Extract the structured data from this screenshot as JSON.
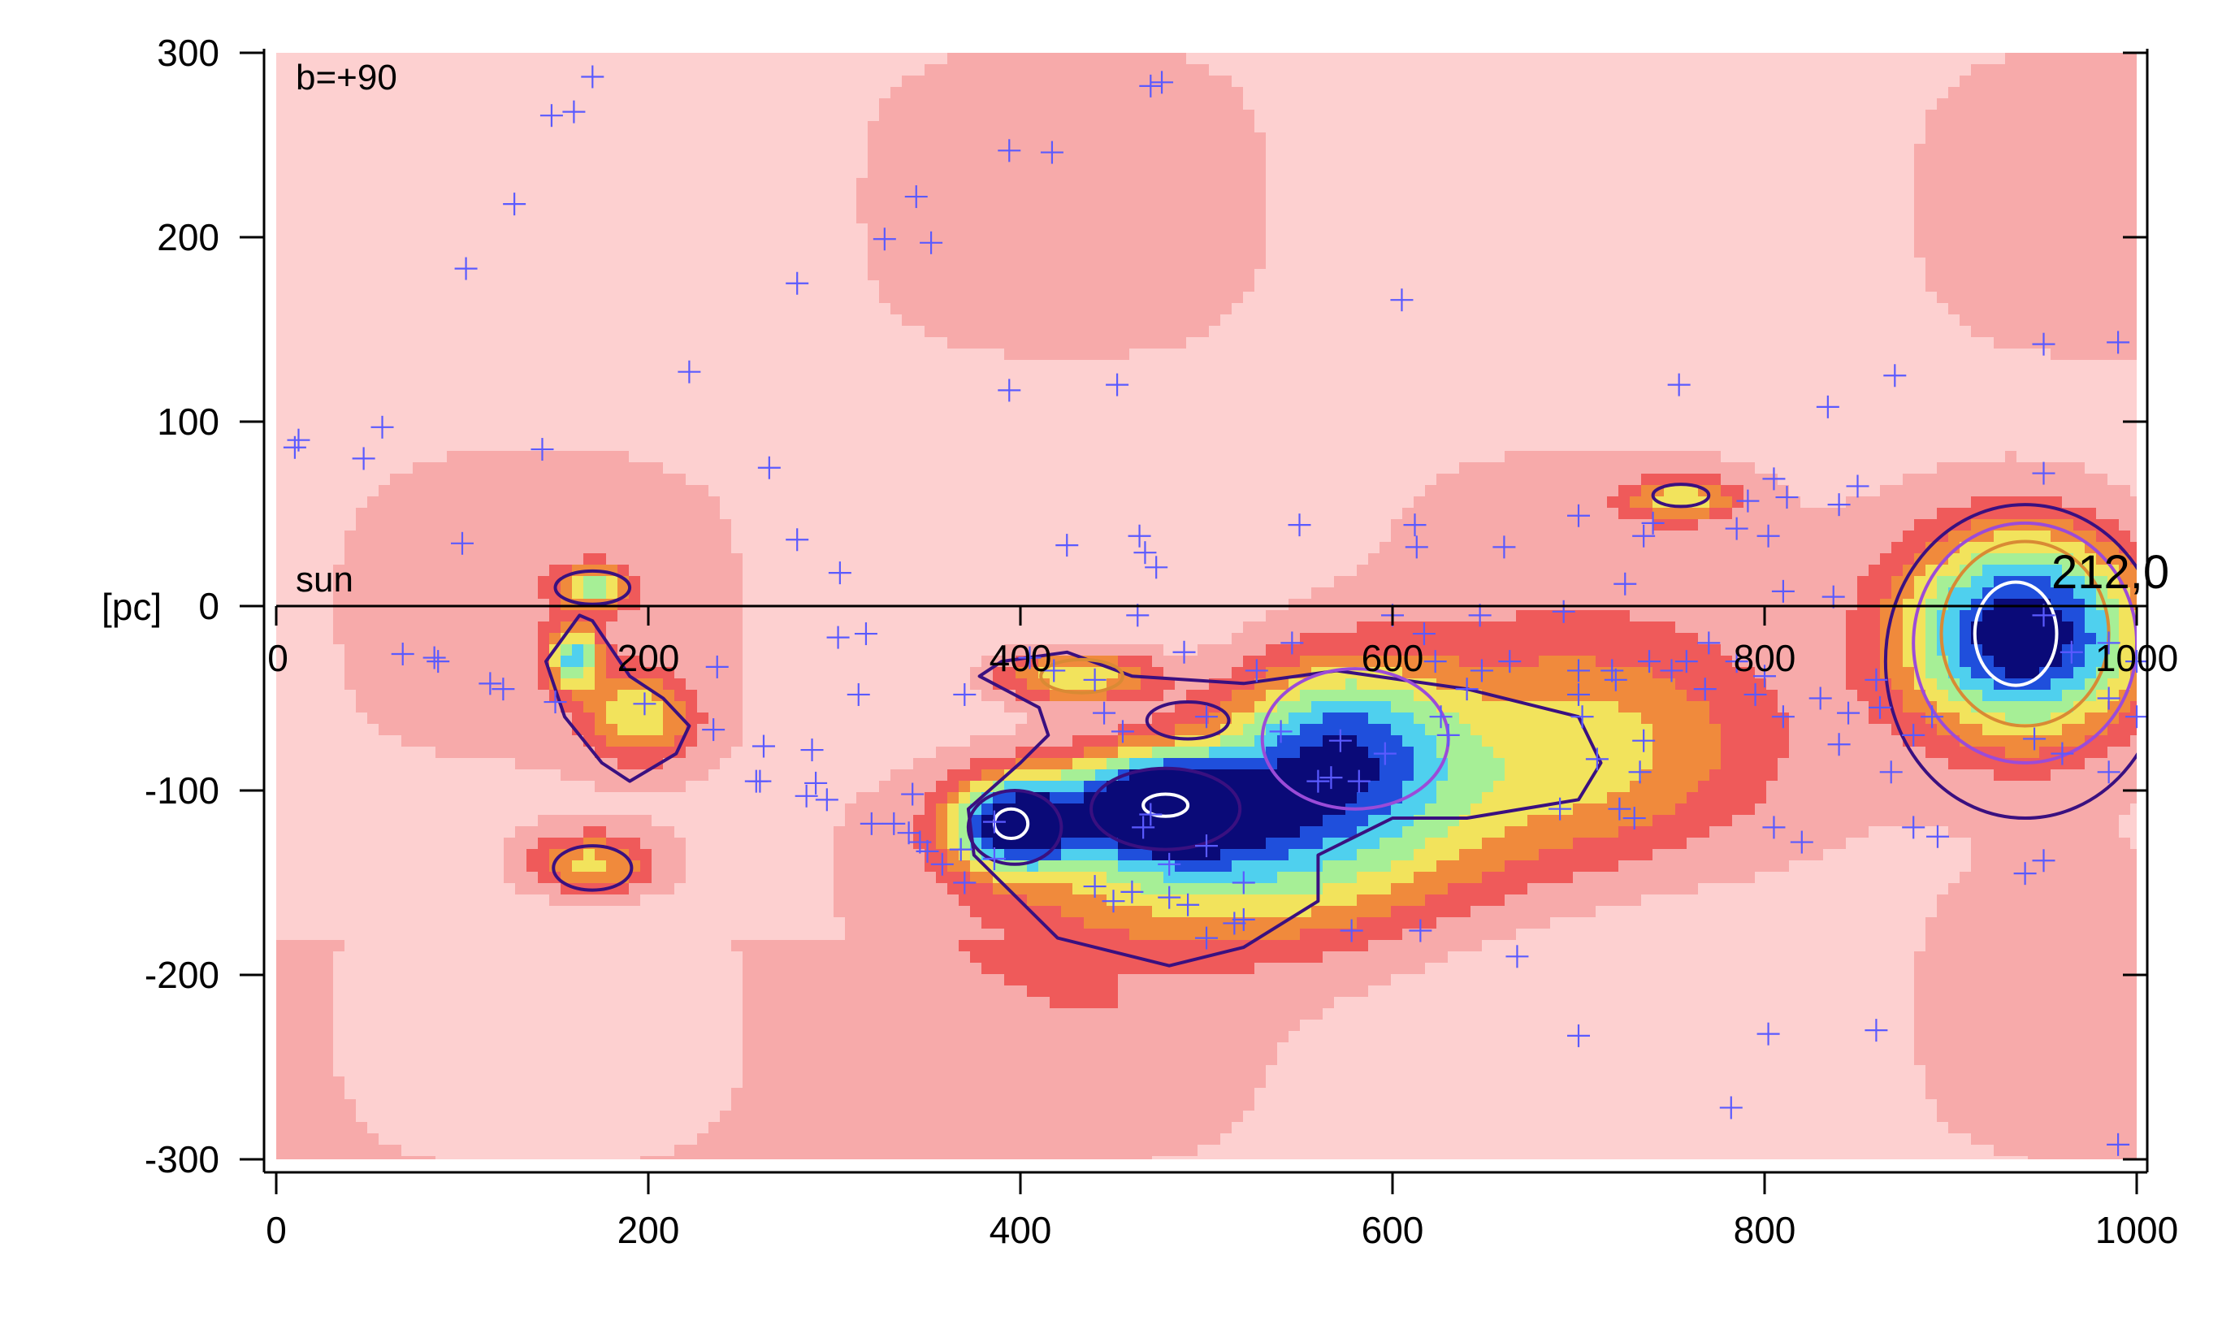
{
  "chart_data": {
    "type": "heatmap",
    "title": "",
    "xlabel": "",
    "ylabel": "[pc]",
    "xlim": [
      0,
      1000
    ],
    "ylim": [
      -300,
      300
    ],
    "x_ticks": [
      "0",
      "200",
      "400",
      "600",
      "800",
      "1000"
    ],
    "y_ticks": [
      "300",
      "200",
      "100",
      "0",
      "-100",
      "-200",
      "-300"
    ],
    "inner_x_ticks": [
      "0",
      "200",
      "400",
      "600",
      "800",
      "1000"
    ],
    "ylabel_prefix": "[pc]",
    "annotations": {
      "corner": "b=+90",
      "sun": "sun",
      "edge": "212,0"
    },
    "colormap": [
      "#ffe6e6",
      "#fdd0d0",
      "#f7aaaa",
      "#ef5a5a",
      "#f08a3c",
      "#f2e35c",
      "#a6ef96",
      "#4fd0ee",
      "#1f4fdc",
      "#0a0a78"
    ],
    "colors": {
      "axis": "#000000",
      "contour_outer": "#3a1080",
      "contour_mid": "#9b4bd8",
      "contour_inner": "#d98a34",
      "contour_peak": "#ffffff",
      "markers": "#5a5aff"
    },
    "density_blobs": [
      {
        "x": 940,
        "y": -15,
        "peak": 1.0,
        "sx": 45,
        "sy": 38
      },
      {
        "x": 478,
        "y": -108,
        "peak": 0.95,
        "sx": 35,
        "sy": 18
      },
      {
        "x": 397,
        "y": -118,
        "peak": 0.9,
        "sx": 22,
        "sy": 16
      },
      {
        "x": 570,
        "y": -75,
        "peak": 0.62,
        "sx": 42,
        "sy": 32
      },
      {
        "x": 520,
        "y": -130,
        "peak": 0.55,
        "sx": 85,
        "sy": 35
      },
      {
        "x": 160,
        "y": -28,
        "peak": 0.55,
        "sx": 10,
        "sy": 12
      },
      {
        "x": 170,
        "y": 10,
        "peak": 0.45,
        "sx": 14,
        "sy": 8
      },
      {
        "x": 195,
        "y": -60,
        "peak": 0.4,
        "sx": 20,
        "sy": 16
      },
      {
        "x": 170,
        "y": -140,
        "peak": 0.38,
        "sx": 24,
        "sy": 12
      },
      {
        "x": 755,
        "y": 58,
        "peak": 0.4,
        "sx": 20,
        "sy": 8
      },
      {
        "x": 430,
        "y": -38,
        "peak": 0.45,
        "sx": 30,
        "sy": 10
      },
      {
        "x": 700,
        "y": -80,
        "peak": 0.35,
        "sx": 70,
        "sy": 40
      }
    ],
    "contours": [
      {
        "level": "outer",
        "x": 940,
        "y": -30,
        "rx": 75,
        "ry": 85
      },
      {
        "level": "mid",
        "x": 940,
        "y": -20,
        "rx": 60,
        "ry": 65
      },
      {
        "level": "inner",
        "x": 940,
        "y": -15,
        "rx": 45,
        "ry": 50
      },
      {
        "level": "peak",
        "x": 935,
        "y": -15,
        "rx": 22,
        "ry": 28
      },
      {
        "level": "outer",
        "x": 478,
        "y": -110,
        "rx": 40,
        "ry": 22
      },
      {
        "level": "peak",
        "x": 478,
        "y": -108,
        "rx": 12,
        "ry": 6
      },
      {
        "level": "outer",
        "x": 397,
        "y": -120,
        "rx": 25,
        "ry": 20
      },
      {
        "level": "peak",
        "x": 395,
        "y": -118,
        "rx": 9,
        "ry": 8
      },
      {
        "level": "mid",
        "x": 580,
        "y": -72,
        "rx": 50,
        "ry": 38
      },
      {
        "level": "outer",
        "x": 490,
        "y": -62,
        "rx": 22,
        "ry": 10
      },
      {
        "level": "outer",
        "x": 170,
        "y": 10,
        "rx": 20,
        "ry": 9
      },
      {
        "level": "outer",
        "x": 170,
        "y": -142,
        "rx": 21,
        "ry": 12
      },
      {
        "level": "outer",
        "x": 755,
        "y": 60,
        "rx": 15,
        "ry": 6
      },
      {
        "level": "inner",
        "x": 433,
        "y": -38,
        "rx": 22,
        "ry": 9
      }
    ],
    "outer_paths": [
      {
        "name": "central-complex",
        "points": [
          [
            372,
            -110
          ],
          [
            400,
            -85
          ],
          [
            415,
            -70
          ],
          [
            410,
            -55
          ],
          [
            378,
            -38
          ],
          [
            390,
            -30
          ],
          [
            425,
            -25
          ],
          [
            460,
            -38
          ],
          [
            520,
            -42
          ],
          [
            570,
            -35
          ],
          [
            640,
            -45
          ],
          [
            700,
            -60
          ],
          [
            712,
            -85
          ],
          [
            700,
            -105
          ],
          [
            640,
            -115
          ],
          [
            600,
            -115
          ],
          [
            560,
            -135
          ],
          [
            560,
            -160
          ],
          [
            520,
            -185
          ],
          [
            480,
            -195
          ],
          [
            420,
            -180
          ],
          [
            395,
            -155
          ],
          [
            375,
            -135
          ]
        ]
      },
      {
        "name": "left-filament",
        "points": [
          [
            163,
            -5
          ],
          [
            145,
            -30
          ],
          [
            155,
            -60
          ],
          [
            175,
            -85
          ],
          [
            190,
            -95
          ],
          [
            215,
            -80
          ],
          [
            222,
            -65
          ],
          [
            208,
            -50
          ],
          [
            190,
            -38
          ],
          [
            178,
            -20
          ],
          [
            170,
            -8
          ]
        ]
      }
    ],
    "markers": [
      [
        170,
        287
      ],
      [
        148,
        266
      ],
      [
        160,
        268
      ],
      [
        128,
        218
      ],
      [
        102,
        183
      ],
      [
        10,
        86
      ],
      [
        12,
        90
      ],
      [
        47,
        80
      ],
      [
        57,
        97
      ],
      [
        143,
        85
      ],
      [
        100,
        34
      ],
      [
        222,
        127
      ],
      [
        280,
        175
      ],
      [
        265,
        75
      ],
      [
        280,
        36
      ],
      [
        303,
        18
      ],
      [
        344,
        222
      ],
      [
        352,
        197
      ],
      [
        327,
        199
      ],
      [
        394,
        247
      ],
      [
        417,
        246
      ],
      [
        394,
        117
      ],
      [
        452,
        120
      ],
      [
        470,
        282
      ],
      [
        476,
        284
      ],
      [
        425,
        33
      ],
      [
        464,
        38
      ],
      [
        467,
        29
      ],
      [
        473,
        21
      ],
      [
        550,
        44
      ],
      [
        605,
        166
      ],
      [
        612,
        44
      ],
      [
        613,
        32
      ],
      [
        660,
        32
      ],
      [
        700,
        49
      ],
      [
        740,
        45
      ],
      [
        735,
        38
      ],
      [
        725,
        12
      ],
      [
        754,
        120
      ],
      [
        785,
        42
      ],
      [
        791,
        57
      ],
      [
        802,
        38
      ],
      [
        805,
        69
      ],
      [
        812,
        59
      ],
      [
        810,
        8
      ],
      [
        834,
        108
      ],
      [
        840,
        55
      ],
      [
        850,
        65
      ],
      [
        837,
        5
      ],
      [
        870,
        125
      ],
      [
        950,
        72
      ],
      [
        950,
        142
      ],
      [
        990,
        143
      ],
      [
        68,
        -26
      ],
      [
        85,
        -28
      ],
      [
        87,
        -30
      ],
      [
        115,
        -42
      ],
      [
        122,
        -45
      ],
      [
        150,
        -52
      ],
      [
        198,
        -53
      ],
      [
        237,
        -33
      ],
      [
        235,
        -67
      ],
      [
        262,
        -76
      ],
      [
        260,
        -95
      ],
      [
        258,
        -95
      ],
      [
        288,
        -78
      ],
      [
        290,
        -96
      ],
      [
        285,
        -103
      ],
      [
        296,
        -105
      ],
      [
        302,
        -17
      ],
      [
        317,
        -15
      ],
      [
        313,
        -48
      ],
      [
        320,
        -118
      ],
      [
        332,
        -118
      ],
      [
        342,
        -102
      ],
      [
        340,
        -123
      ],
      [
        346,
        -128
      ],
      [
        350,
        -133
      ],
      [
        358,
        -140
      ],
      [
        368,
        -132
      ],
      [
        370,
        -150
      ],
      [
        386,
        -117
      ],
      [
        386,
        -137
      ],
      [
        370,
        -48
      ],
      [
        405,
        -28
      ],
      [
        418,
        -35
      ],
      [
        440,
        -40
      ],
      [
        445,
        -58
      ],
      [
        455,
        -68
      ],
      [
        463,
        -5
      ],
      [
        480,
        -140
      ],
      [
        500,
        -130
      ],
      [
        488,
        -25
      ],
      [
        500,
        -60
      ],
      [
        527,
        -35
      ],
      [
        520,
        -150
      ],
      [
        540,
        -68
      ],
      [
        520,
        -170
      ],
      [
        546,
        -20
      ],
      [
        560,
        -95
      ],
      [
        567,
        -93
      ],
      [
        572,
        -73
      ],
      [
        582,
        -95
      ],
      [
        596,
        -80
      ],
      [
        600,
        -5
      ],
      [
        617,
        -15
      ],
      [
        623,
        -30
      ],
      [
        626,
        -60
      ],
      [
        630,
        -70
      ],
      [
        640,
        -45
      ],
      [
        648,
        -35
      ],
      [
        647,
        -5
      ],
      [
        663,
        -30
      ],
      [
        692,
        -3
      ],
      [
        700,
        -35
      ],
      [
        700,
        -48
      ],
      [
        702,
        -60
      ],
      [
        718,
        -35
      ],
      [
        720,
        -40
      ],
      [
        733,
        -90
      ],
      [
        735,
        -73
      ],
      [
        710,
        -83
      ],
      [
        690,
        -110
      ],
      [
        722,
        -110
      ],
      [
        730,
        -115
      ],
      [
        738,
        -30
      ],
      [
        750,
        -35
      ],
      [
        758,
        -30
      ],
      [
        768,
        -45
      ],
      [
        770,
        -20
      ],
      [
        785,
        -30
      ],
      [
        795,
        -48
      ],
      [
        800,
        -38
      ],
      [
        810,
        -60
      ],
      [
        830,
        -50
      ],
      [
        845,
        -58
      ],
      [
        840,
        -75
      ],
      [
        860,
        -40
      ],
      [
        862,
        -55
      ],
      [
        880,
        -70
      ],
      [
        890,
        -60
      ],
      [
        868,
        -90
      ],
      [
        805,
        -120
      ],
      [
        880,
        -120
      ],
      [
        893,
        -125
      ],
      [
        820,
        -128
      ],
      [
        950,
        -138
      ],
      [
        940,
        -145
      ],
      [
        950,
        -5
      ],
      [
        965,
        -25
      ],
      [
        985,
        -20
      ],
      [
        985,
        -50
      ],
      [
        1000,
        -30
      ],
      [
        1000,
        -60
      ],
      [
        985,
        -90
      ],
      [
        960,
        -80
      ],
      [
        945,
        -72
      ],
      [
        667,
        -190
      ],
      [
        700,
        -233
      ],
      [
        802,
        -232
      ],
      [
        860,
        -230
      ],
      [
        782,
        -272
      ],
      [
        990,
        -292
      ],
      [
        578,
        -176
      ],
      [
        615,
        -176
      ],
      [
        500,
        -180
      ],
      [
        515,
        -172
      ],
      [
        450,
        -160
      ],
      [
        440,
        -152
      ],
      [
        460,
        -155
      ],
      [
        480,
        -158
      ],
      [
        490,
        -162
      ],
      [
        466,
        -120
      ],
      [
        470,
        -113
      ]
    ]
  }
}
